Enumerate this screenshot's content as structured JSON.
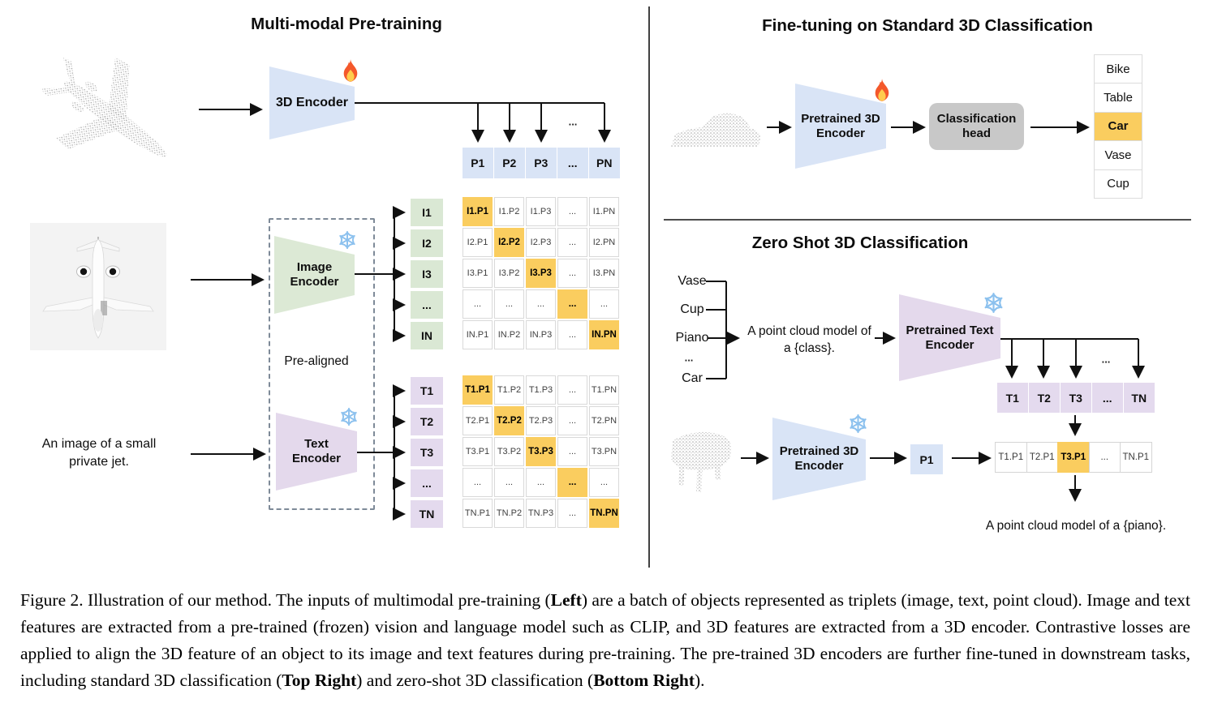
{
  "left": {
    "title": "Multi-modal Pre-training",
    "encoder3d_label": "3D Encoder",
    "p_row": [
      "P1",
      "P2",
      "P3",
      "...",
      "PN"
    ],
    "fanout_ellipsis": "...",
    "image_encoder_line1": "Image",
    "image_encoder_line2": "Encoder",
    "text_encoder_line1": "Text",
    "text_encoder_line2": "Encoder",
    "pre_aligned_label": "Pre-aligned",
    "i_labels": [
      "I1",
      "I2",
      "I3",
      "...",
      "IN"
    ],
    "i_matrix": [
      [
        "I1.P1",
        "I1.P2",
        "I1.P3",
        "...",
        "I1.PN"
      ],
      [
        "I2.P1",
        "I2.P2",
        "I2.P3",
        "...",
        "I2.PN"
      ],
      [
        "I3.P1",
        "I3.P2",
        "I3.P3",
        "...",
        "I3.PN"
      ],
      [
        "...",
        "...",
        "...",
        "...",
        "..."
      ],
      [
        "IN.P1",
        "IN.P2",
        "IN.P3",
        "...",
        "IN.PN"
      ]
    ],
    "t_labels": [
      "T1",
      "T2",
      "T3",
      "...",
      "TN"
    ],
    "t_matrix": [
      [
        "T1.P1",
        "T1.P2",
        "T1.P3",
        "...",
        "T1.PN"
      ],
      [
        "T2.P1",
        "T2.P2",
        "T2.P3",
        "...",
        "T2.PN"
      ],
      [
        "T3.P1",
        "T3.P2",
        "T3.P3",
        "...",
        "T3.PN"
      ],
      [
        "...",
        "...",
        "...",
        "...",
        "..."
      ],
      [
        "TN.P1",
        "TN.P2",
        "TN.P3",
        "...",
        "TN.PN"
      ]
    ],
    "image_caption_line1": "An image of a small",
    "image_caption_line2": "private jet."
  },
  "top_right": {
    "title": "Fine-tuning on Standard 3D Classification",
    "encoder_line1": "Pretrained 3D",
    "encoder_line2": "Encoder",
    "head_line1": "Classification",
    "head_line2": "head",
    "classes": [
      {
        "label": "Bike",
        "highlighted": false
      },
      {
        "label": "Table",
        "highlighted": false
      },
      {
        "label": "Car",
        "highlighted": true
      },
      {
        "label": "Vase",
        "highlighted": false
      },
      {
        "label": "Cup",
        "highlighted": false
      }
    ]
  },
  "bottom_right": {
    "title": "Zero Shot 3D Classification",
    "class_list": [
      "Vase",
      "Cup",
      "Piano",
      "...",
      "Car"
    ],
    "prompt_line1": "A point cloud model of",
    "prompt_line2": "a {class}.",
    "text_encoder_line1": "Pretrained Text",
    "text_encoder_line2": "Encoder",
    "fanout_ellipsis": "...",
    "t_row": [
      "T1",
      "T2",
      "T3",
      "...",
      "TN"
    ],
    "encoder3d_line1": "Pretrained 3D",
    "encoder3d_line2": "Encoder",
    "p1_label": "P1",
    "tp_row": [
      "T1.P1",
      "T2.P1",
      "T3.P1",
      "...",
      "TN.P1"
    ],
    "tp_highlight_index": 2,
    "result_text": "A point cloud model of a {piano}."
  },
  "caption": {
    "segments": [
      {
        "text": "Figure 2. Illustration of our method. The inputs of multimodal pre-training (",
        "bold": false
      },
      {
        "text": "Left",
        "bold": true
      },
      {
        "text": ") are a batch of objects represented as triplets (image, text, point cloud). Image and text features are extracted from a pre-trained (frozen) vision and language model such as CLIP, and 3D features are extracted from a 3D encoder. Contrastive losses are applied to align the 3D feature of an object to its image and text features during pre-training. The pre-trained 3D encoders are further fine-tuned in downstream tasks, including standard 3D classification (",
        "bold": false
      },
      {
        "text": "Top Right",
        "bold": true
      },
      {
        "text": ") and zero-shot 3D classification (",
        "bold": false
      },
      {
        "text": "Bottom Right",
        "bold": true
      },
      {
        "text": ").",
        "bold": false
      }
    ]
  },
  "colors": {
    "light_blue": "#D9E4F6",
    "light_green": "#DAE8D4",
    "light_purple": "#E4DAEE",
    "highlight_orange": "#FACD5F",
    "head_gray": "#C8C8C8"
  }
}
